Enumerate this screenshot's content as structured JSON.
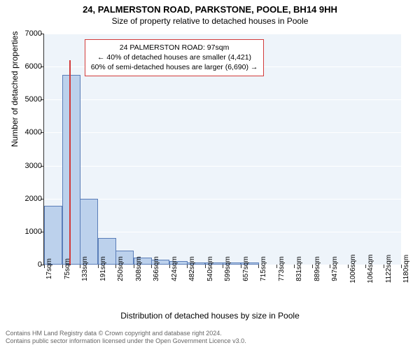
{
  "title": "24, PALMERSTON ROAD, PARKSTONE, POOLE, BH14 9HH",
  "subtitle": "Size of property relative to detached houses in Poole",
  "ylabel": "Number of detached properties",
  "xlabel": "Distribution of detached houses by size in Poole",
  "info_box": {
    "line1": "24 PALMERSTON ROAD: 97sqm",
    "line2": "← 40% of detached houses are smaller (4,421)",
    "line3": "60% of semi-detached houses are larger (6,690) →"
  },
  "chart": {
    "type": "histogram",
    "background_color": "#eef4fa",
    "grid_color": "#ffffff",
    "bar_fill": "#bcd1ec",
    "bar_border": "#5a7db8",
    "marker_color": "#d23b3b",
    "ylim": [
      0,
      7000
    ],
    "yticks": [
      0,
      1000,
      2000,
      3000,
      4000,
      5000,
      6000,
      7000
    ],
    "xticks": [
      "17sqm",
      "75sqm",
      "133sqm",
      "191sqm",
      "250sqm",
      "308sqm",
      "366sqm",
      "424sqm",
      "482sqm",
      "540sqm",
      "599sqm",
      "657sqm",
      "715sqm",
      "773sqm",
      "831sqm",
      "889sqm",
      "947sqm",
      "1006sqm",
      "1064sqm",
      "1122sqm",
      "1180sqm"
    ],
    "bars": [
      1780,
      5750,
      2000,
      800,
      430,
      220,
      140,
      100,
      70,
      60,
      55,
      55,
      0,
      0,
      0,
      0,
      0,
      0,
      0,
      0
    ],
    "marker_index": 1.4,
    "marker_height": 6200
  },
  "footer": {
    "line1": "Contains HM Land Registry data © Crown copyright and database right 2024.",
    "line2": "Contains public sector information licensed under the Open Government Licence v3.0."
  }
}
